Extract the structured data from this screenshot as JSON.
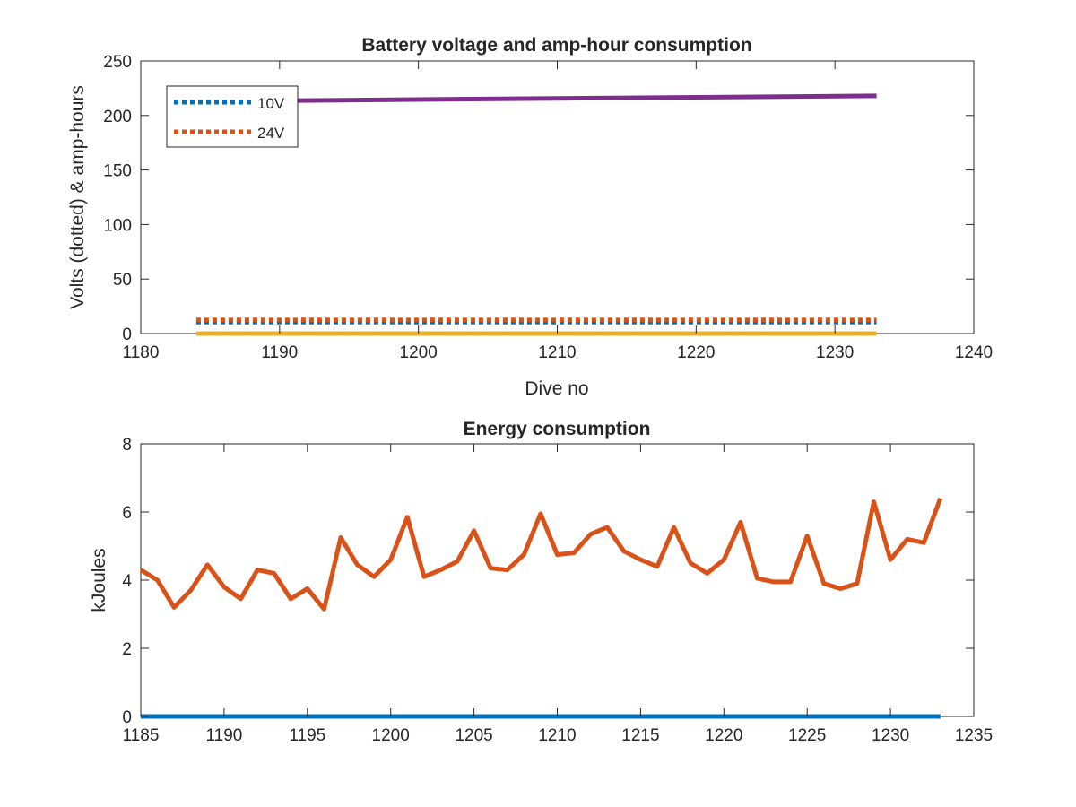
{
  "chart_data": [
    {
      "type": "line",
      "title": "Battery voltage and amp-hour consumption",
      "xlabel": "Dive no",
      "ylabel": "Volts (dotted) & amp-hours",
      "xlim": [
        1180,
        1240
      ],
      "ylim": [
        0,
        250
      ],
      "xticks": [
        "1180",
        "1190",
        "1200",
        "1210",
        "1220",
        "1230",
        "1240"
      ],
      "yticks": [
        "0",
        "50",
        "100",
        "150",
        "200",
        "250"
      ],
      "legend_position": "top-left",
      "series": [
        {
          "name": "10V",
          "style": "dotted",
          "color": "#0072BD",
          "x": [
            1184,
            1233
          ],
          "y": [
            10.5,
            10.5
          ]
        },
        {
          "name": "24V",
          "style": "dotted",
          "color": "#D95319",
          "x": [
            1184,
            1233
          ],
          "y": [
            12.5,
            12.5
          ]
        },
        {
          "style": "solid",
          "color": "#EDB120",
          "x": [
            1184,
            1233
          ],
          "y": [
            0,
            0
          ]
        },
        {
          "style": "solid",
          "color": "#7E2F8E",
          "x": [
            1184,
            1233
          ],
          "y": [
            213,
            218
          ]
        }
      ]
    },
    {
      "type": "line",
      "title": "Energy consumption",
      "xlabel": "",
      "ylabel": "kJoules",
      "xlim": [
        1185,
        1235
      ],
      "ylim": [
        0,
        8
      ],
      "xticks": [
        "1185",
        "1190",
        "1195",
        "1200",
        "1205",
        "1210",
        "1215",
        "1220",
        "1225",
        "1230",
        "1235"
      ],
      "yticks": [
        "0",
        "2",
        "4",
        "6",
        "8"
      ],
      "series": [
        {
          "style": "solid",
          "color": "#0072BD",
          "x": [
            1185,
            1233
          ],
          "y": [
            0,
            0
          ]
        },
        {
          "style": "solid",
          "color": "#D95319",
          "x": [
            1185,
            1186,
            1187,
            1188,
            1189,
            1190,
            1191,
            1192,
            1193,
            1194,
            1195,
            1196,
            1197,
            1198,
            1199,
            1200,
            1201,
            1202,
            1203,
            1204,
            1205,
            1206,
            1207,
            1208,
            1209,
            1210,
            1211,
            1212,
            1213,
            1214,
            1215,
            1216,
            1217,
            1218,
            1219,
            1220,
            1221,
            1222,
            1223,
            1224,
            1225,
            1226,
            1227,
            1228,
            1229,
            1230,
            1231,
            1232,
            1233
          ],
          "y": [
            4.3,
            4.0,
            3.2,
            3.7,
            4.45,
            3.8,
            3.45,
            4.3,
            4.2,
            3.45,
            3.75,
            3.15,
            5.25,
            4.45,
            4.1,
            4.6,
            5.85,
            4.1,
            4.3,
            4.55,
            5.45,
            4.35,
            4.3,
            4.75,
            5.95,
            4.75,
            4.8,
            5.35,
            5.55,
            4.85,
            4.6,
            4.4,
            5.55,
            4.5,
            4.2,
            4.6,
            5.7,
            4.05,
            3.95,
            3.95,
            5.3,
            3.9,
            3.75,
            3.9,
            6.3,
            4.6,
            5.2,
            5.1,
            6.4
          ]
        }
      ]
    }
  ]
}
